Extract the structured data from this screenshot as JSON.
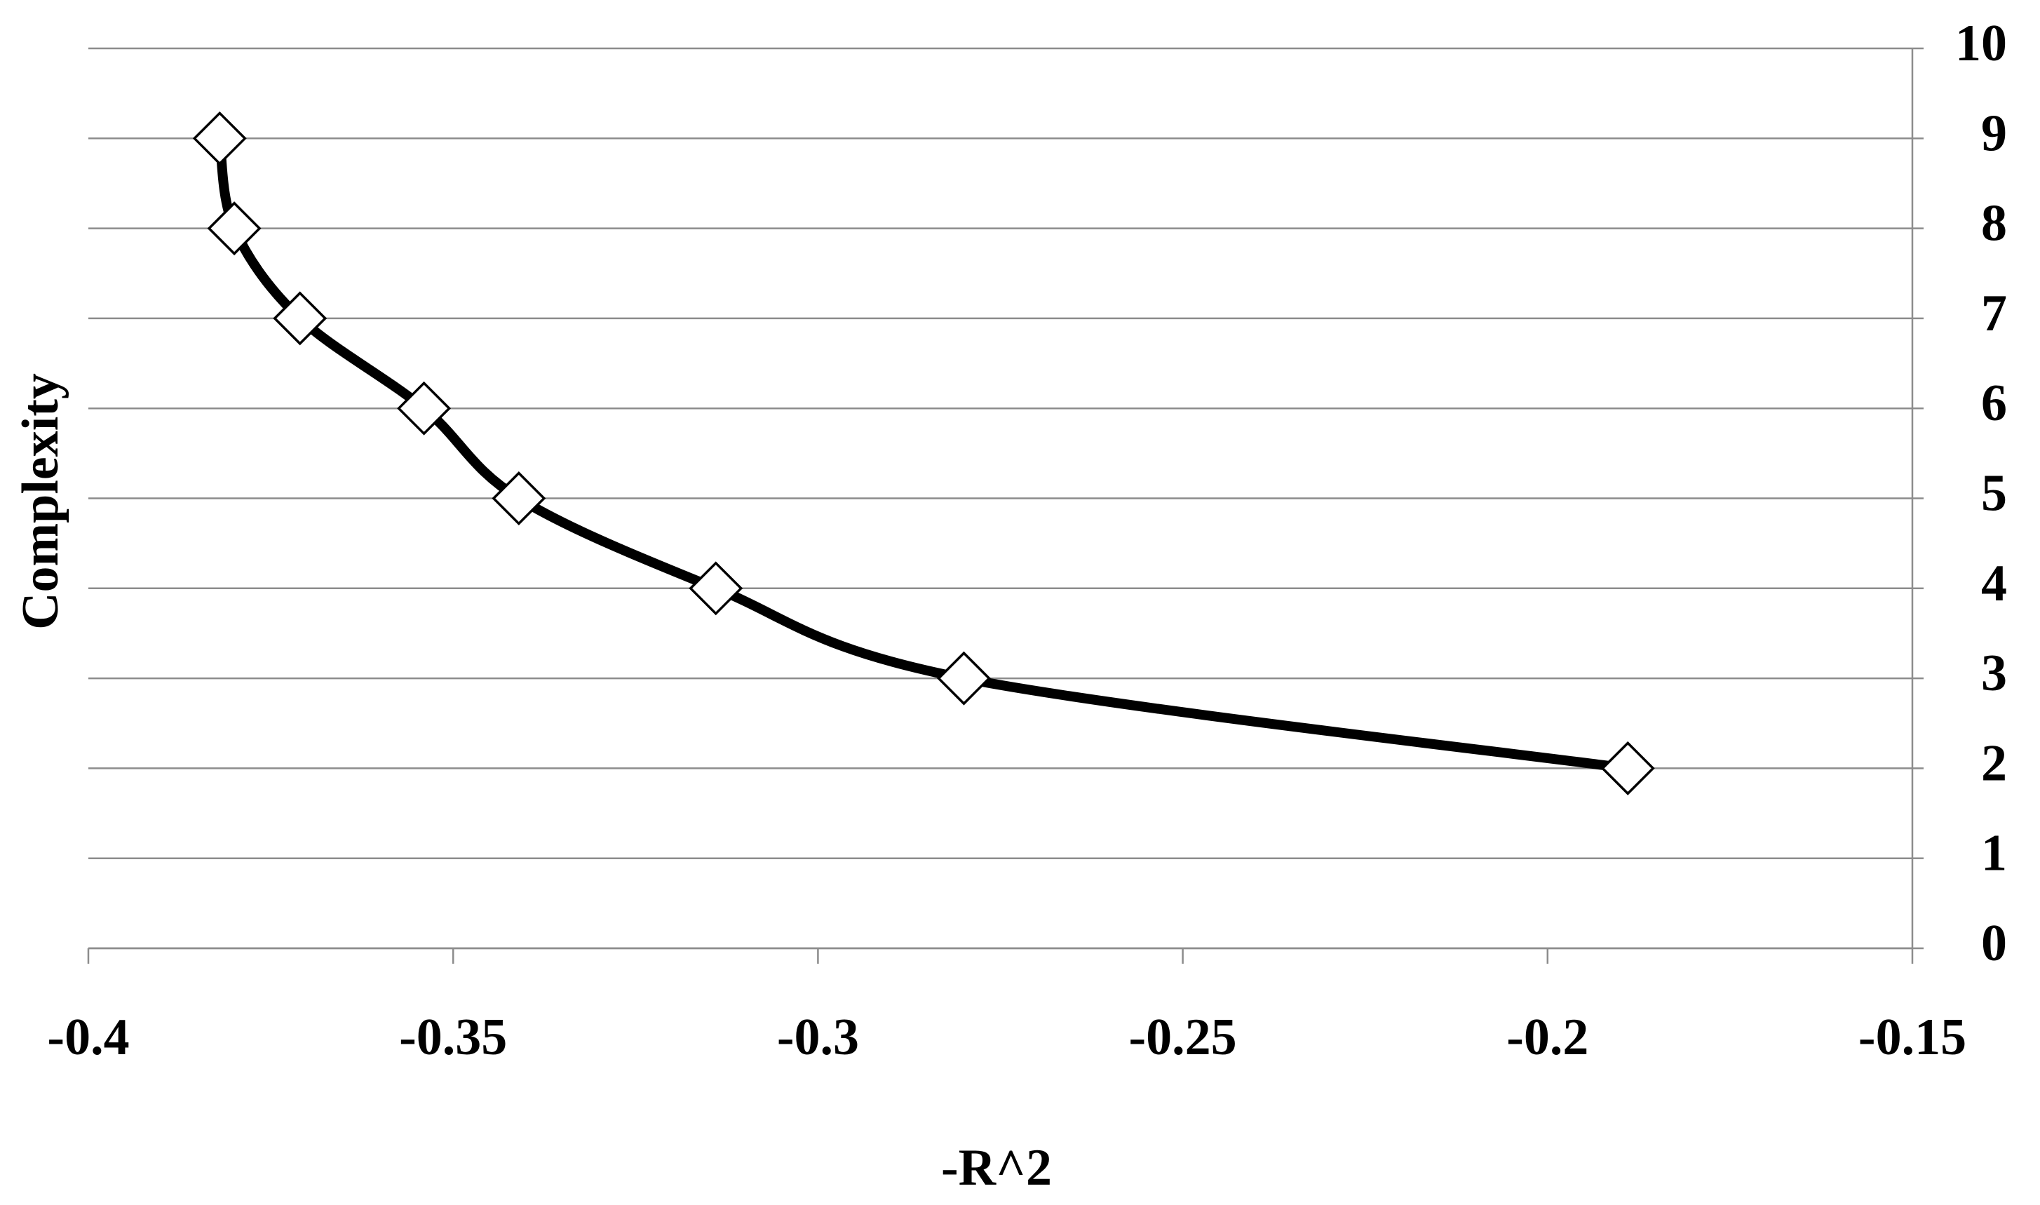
{
  "chart_data": {
    "type": "line",
    "xlabel": "-R^2",
    "ylabel": "Complexity",
    "x": [
      -0.382,
      -0.38,
      -0.371,
      -0.354,
      -0.341,
      -0.314,
      -0.28,
      -0.189
    ],
    "values": [
      9,
      8,
      7,
      6,
      5,
      4,
      3,
      2
    ],
    "color": "#000000",
    "marker": "diamond",
    "smooth": true,
    "grid": true,
    "y_axis_side": "right",
    "xlim": [
      -0.4,
      -0.15
    ],
    "xticks": [
      -0.4,
      -0.35,
      -0.3,
      -0.25,
      -0.2,
      -0.15
    ],
    "ylim": [
      0,
      10
    ],
    "yticks": [
      0,
      1,
      2,
      3,
      4,
      5,
      6,
      7,
      8,
      9,
      10
    ]
  }
}
